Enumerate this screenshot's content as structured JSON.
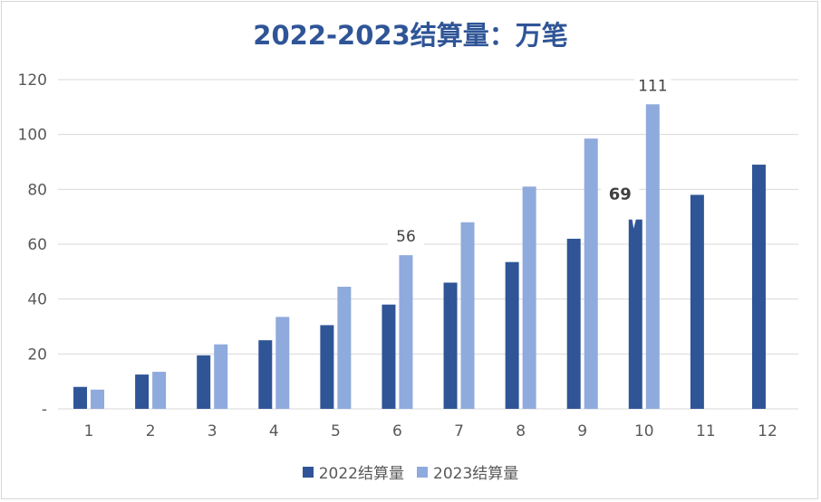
{
  "chart_data": {
    "type": "bar",
    "title": "2022-2023结算量：万笔",
    "categories": [
      "1",
      "2",
      "3",
      "4",
      "5",
      "6",
      "7",
      "8",
      "9",
      "10",
      "11",
      "12"
    ],
    "series": [
      {
        "name": "2022结算量",
        "color": "#2f5597",
        "values": [
          8,
          12.5,
          19.5,
          25,
          30.5,
          38,
          46,
          53.5,
          62,
          69,
          78,
          89
        ]
      },
      {
        "name": "2023结算量",
        "color": "#8faadc",
        "values": [
          7,
          13.5,
          23.5,
          33.5,
          44.5,
          56,
          68,
          81,
          98.5,
          111,
          null,
          null
        ]
      }
    ],
    "ylim": [
      0,
      120
    ],
    "yticks": [
      0,
      20,
      40,
      60,
      80,
      100,
      120
    ],
    "ytick_labels": [
      "-",
      "20",
      "40",
      "60",
      "80",
      "100",
      "120"
    ],
    "data_labels": [
      {
        "series": 1,
        "index": 5,
        "text": "56"
      },
      {
        "series": 0,
        "index": 9,
        "text": "69",
        "bold": true
      },
      {
        "series": 1,
        "index": 9,
        "text": "111"
      }
    ],
    "grid": true,
    "legend": "bottom"
  }
}
